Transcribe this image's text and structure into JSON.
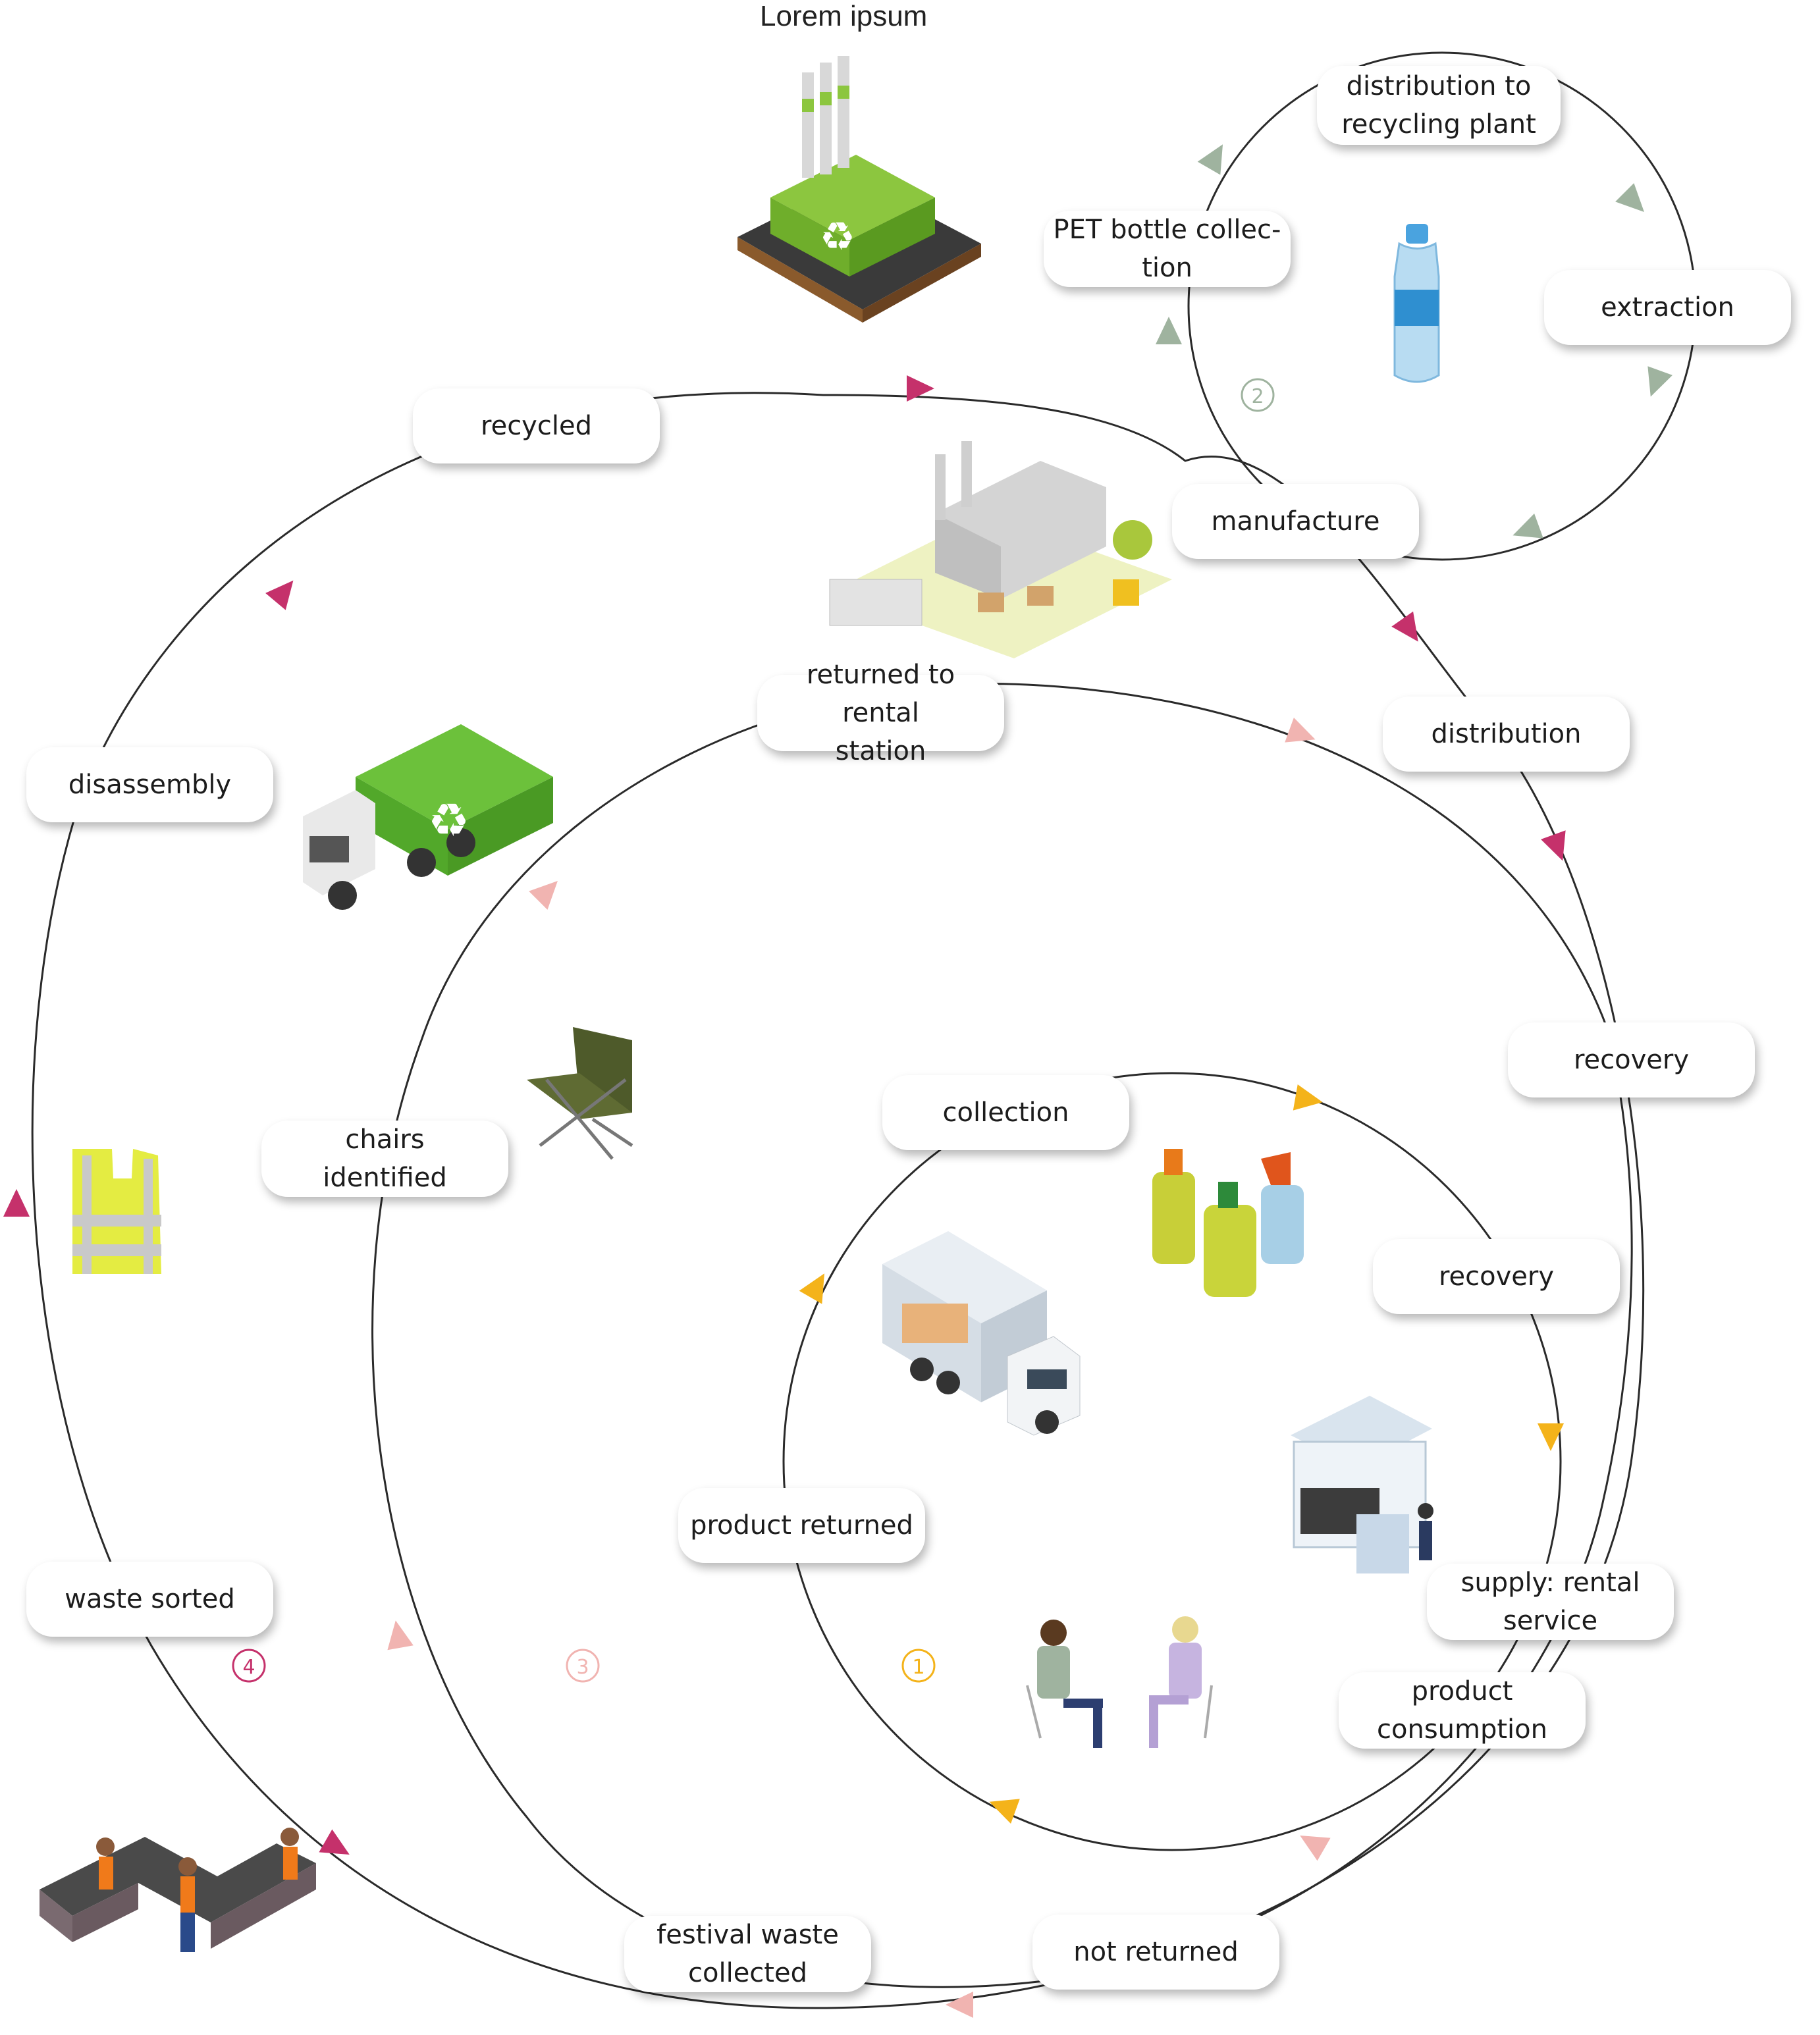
{
  "title": "Lorem ipsum",
  "colors": {
    "loop1": "#f4b31a",
    "loop2": "#9fb39f",
    "loop3": "#f1b4b1",
    "loop4": "#c5316b",
    "line": "#2a2a2a"
  },
  "loops": [
    {
      "number": "1",
      "color": "#f4b31a"
    },
    {
      "number": "2",
      "color": "#9fb39f"
    },
    {
      "number": "3",
      "color": "#f1b4b1"
    },
    {
      "number": "4",
      "color": "#c5316b"
    }
  ],
  "nodes": {
    "distribution_to_plant": "distribution to\nrecycling plant",
    "pet_bottle": "PET bottle collec-\ntion",
    "extraction": "extraction",
    "recycled": "recycled",
    "manufacture": "manufacture",
    "returned_rental": "returned to rental\nstation",
    "distribution": "distribution",
    "disassembly": "disassembly",
    "recovery_outer": "recovery",
    "collection": "collection",
    "chairs": "chairs\nidentified",
    "recovery_inner": "recovery",
    "product_returned": "product returned",
    "supply": "supply: rental\nservice",
    "waste_sorted": "waste sorted",
    "product_consumption": "product\nconsumption",
    "not_returned": "not returned",
    "festival_waste": "festival waste\ncollected"
  },
  "icons": [
    "recycling-factory-icon",
    "pet-bottle-icon",
    "factory-warehouse-icon",
    "garbage-truck-icon",
    "camping-chair-icon",
    "cleaning-bottles-icon",
    "delivery-truck-icon",
    "rental-kiosk-icon",
    "safety-vest-icon",
    "seated-people-icon",
    "waste-sorting-station-icon"
  ]
}
